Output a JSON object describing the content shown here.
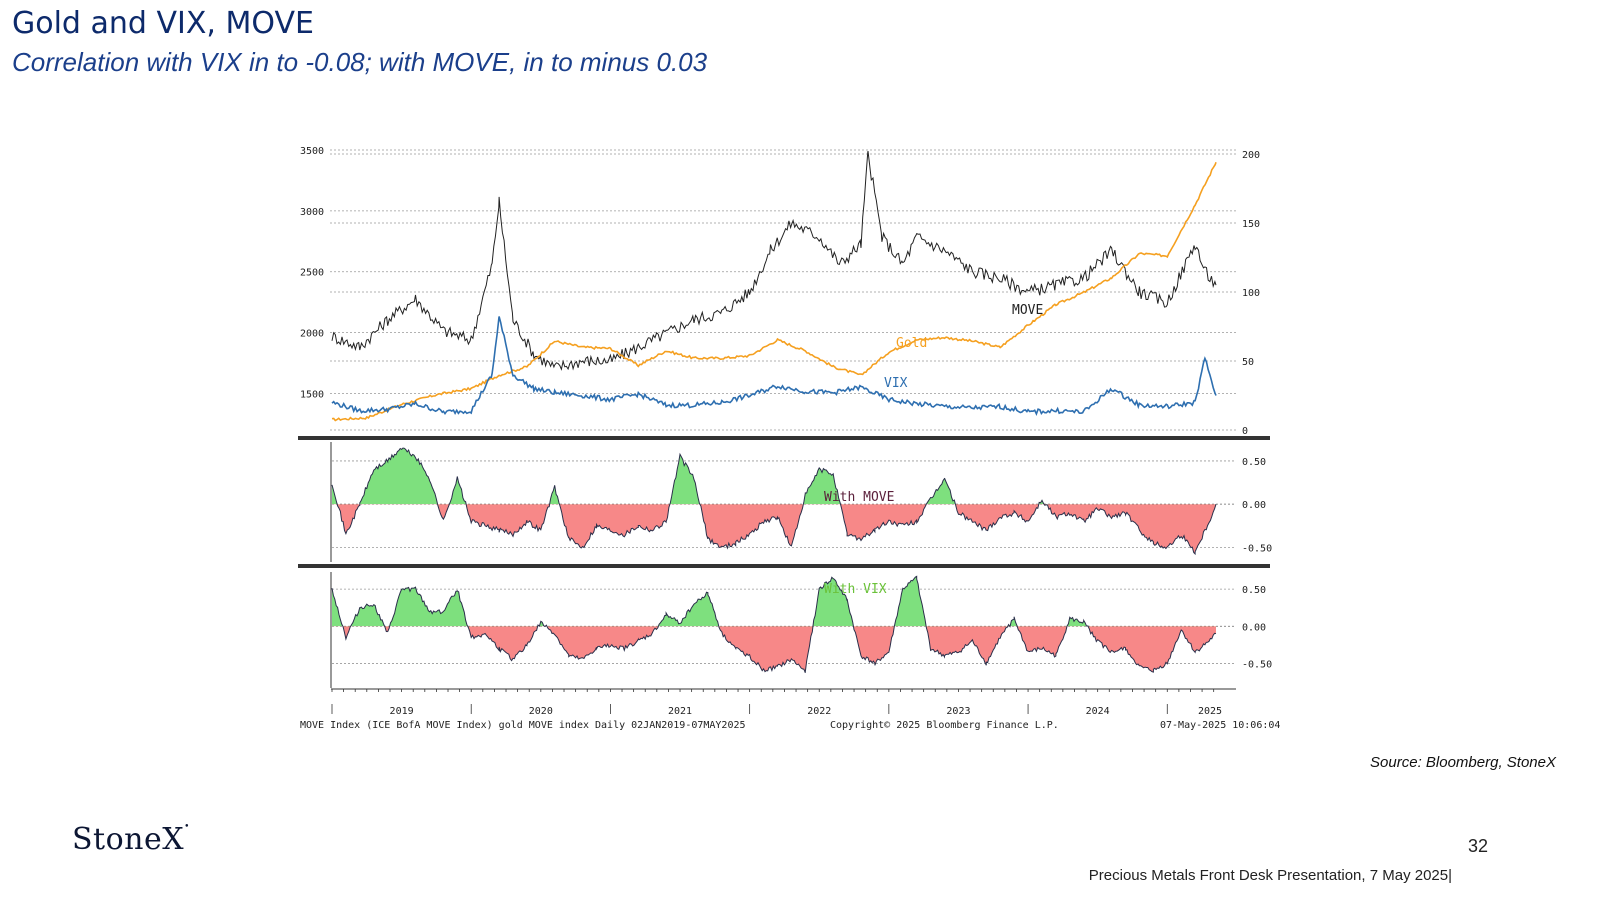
{
  "header": {
    "title": "Gold and VIX, MOVE",
    "subtitle": "Correlation with VIX in to -0.08; with MOVE, in to minus 0.03"
  },
  "footer": {
    "source": "Source: Bloomberg, StoneX",
    "logo": "StoneX",
    "page_number": "32",
    "presentation": "Precious Metals Front Desk Presentation, 7 May 2025|"
  },
  "chart_info": {
    "bottom_left": "MOVE Index (ICE BofA MOVE Index) gold MOVE index  Daily 02JAN2019-07MAY2025",
    "copyright": "Copyright© 2025 Bloomberg Finance L.P.",
    "timestamp": "07-May-2025 10:06:04"
  },
  "chart_data": [
    {
      "type": "line",
      "panel": "price",
      "x_tick_labels": [
        "2019",
        "2020",
        "2021",
        "2022",
        "2023",
        "2024",
        "2025"
      ],
      "y_left_ticks": [
        "3500",
        "3000",
        "2500",
        "2000",
        "1500"
      ],
      "y_right_ticks": [
        "200",
        "150",
        "100",
        "50",
        "0"
      ],
      "ylim_left": [
        1200,
        3500
      ],
      "ylim_right": [
        0,
        200
      ],
      "grid": true,
      "series": [
        {
          "name": "Gold",
          "axis": "left",
          "color": "#f5a020",
          "x": [
            2019.0,
            2019.25,
            2019.5,
            2019.75,
            2020.0,
            2020.2,
            2020.4,
            2020.6,
            2020.8,
            2021.0,
            2021.2,
            2021.4,
            2021.6,
            2021.8,
            2022.0,
            2022.2,
            2022.4,
            2022.6,
            2022.8,
            2023.0,
            2023.2,
            2023.4,
            2023.6,
            2023.8,
            2024.0,
            2024.2,
            2024.4,
            2024.6,
            2024.8,
            2025.0,
            2025.2,
            2025.35
          ],
          "values": [
            1285,
            1300,
            1410,
            1490,
            1540,
            1650,
            1720,
            1930,
            1880,
            1870,
            1730,
            1850,
            1790,
            1790,
            1810,
            1940,
            1850,
            1720,
            1650,
            1840,
            1940,
            1960,
            1930,
            1880,
            2060,
            2230,
            2330,
            2450,
            2650,
            2630,
            3050,
            3400
          ]
        },
        {
          "name": "MOVE",
          "axis": "right",
          "color": "#222222",
          "x": [
            2019.0,
            2019.2,
            2019.4,
            2019.6,
            2019.8,
            2020.0,
            2020.15,
            2020.2,
            2020.3,
            2020.45,
            2020.6,
            2020.8,
            2021.0,
            2021.2,
            2021.4,
            2021.6,
            2021.8,
            2022.0,
            2022.15,
            2022.3,
            2022.5,
            2022.65,
            2022.8,
            2022.85,
            2022.95,
            2023.1,
            2023.2,
            2023.4,
            2023.6,
            2023.8,
            2024.0,
            2024.2,
            2024.4,
            2024.6,
            2024.8,
            2025.0,
            2025.2,
            2025.27,
            2025.35
          ],
          "values": [
            68,
            60,
            80,
            95,
            72,
            65,
            120,
            165,
            80,
            55,
            45,
            50,
            50,
            60,
            70,
            80,
            85,
            100,
            130,
            150,
            140,
            120,
            135,
            200,
            140,
            120,
            140,
            130,
            115,
            110,
            100,
            105,
            110,
            130,
            100,
            92,
            135,
            115,
            105
          ]
        },
        {
          "name": "VIX",
          "axis": "right",
          "color": "#2e6fb0",
          "x": [
            2019.0,
            2019.2,
            2019.4,
            2019.6,
            2019.8,
            2020.0,
            2020.15,
            2020.2,
            2020.3,
            2020.45,
            2020.6,
            2020.8,
            2021.0,
            2021.2,
            2021.4,
            2021.6,
            2021.8,
            2022.0,
            2022.2,
            2022.4,
            2022.6,
            2022.8,
            2023.0,
            2023.2,
            2023.4,
            2023.6,
            2023.8,
            2024.0,
            2024.2,
            2024.4,
            2024.6,
            2024.8,
            2025.0,
            2025.2,
            2025.27,
            2025.35
          ],
          "values": [
            20,
            14,
            15,
            19,
            13,
            14,
            40,
            82,
            40,
            30,
            27,
            25,
            22,
            26,
            18,
            18,
            20,
            25,
            32,
            28,
            27,
            31,
            22,
            19,
            17,
            16,
            17,
            13,
            14,
            13,
            30,
            18,
            17,
            20,
            52,
            25
          ]
        }
      ]
    },
    {
      "type": "area",
      "panel": "correlation",
      "series_name": "With MOVE",
      "color_positive": "#7ee07e",
      "color_negative": "#f78888",
      "y_right_ticks": [
        "0.50",
        "0.00",
        "-0.50"
      ],
      "ylim": [
        -0.6,
        0.65
      ],
      "x": [
        2019.0,
        2019.1,
        2019.2,
        2019.3,
        2019.4,
        2019.5,
        2019.6,
        2019.7,
        2019.8,
        2019.9,
        2020.0,
        2020.1,
        2020.2,
        2020.3,
        2020.4,
        2020.5,
        2020.6,
        2020.7,
        2020.8,
        2020.9,
        2021.0,
        2021.1,
        2021.2,
        2021.3,
        2021.4,
        2021.5,
        2021.6,
        2021.7,
        2021.8,
        2021.9,
        2022.0,
        2022.1,
        2022.2,
        2022.3,
        2022.4,
        2022.5,
        2022.6,
        2022.7,
        2022.8,
        2022.9,
        2023.0,
        2023.1,
        2023.2,
        2023.3,
        2023.4,
        2023.5,
        2023.6,
        2023.7,
        2023.8,
        2023.9,
        2024.0,
        2024.1,
        2024.2,
        2024.3,
        2024.4,
        2024.5,
        2024.6,
        2024.7,
        2024.8,
        2024.9,
        2025.0,
        2025.1,
        2025.2,
        2025.3,
        2025.35
      ],
      "values": [
        0.25,
        -0.35,
        0.0,
        0.4,
        0.5,
        0.65,
        0.55,
        0.3,
        -0.2,
        0.3,
        -0.2,
        -0.25,
        -0.3,
        -0.35,
        -0.2,
        -0.3,
        0.2,
        -0.4,
        -0.5,
        -0.25,
        -0.3,
        -0.35,
        -0.25,
        -0.3,
        -0.2,
        0.55,
        0.3,
        -0.4,
        -0.5,
        -0.45,
        -0.35,
        -0.2,
        -0.15,
        -0.5,
        0.1,
        0.4,
        0.35,
        -0.35,
        -0.4,
        -0.3,
        -0.2,
        -0.25,
        -0.2,
        0.05,
        0.3,
        -0.1,
        -0.2,
        -0.3,
        -0.15,
        -0.1,
        -0.2,
        0.05,
        -0.15,
        -0.1,
        -0.2,
        -0.05,
        -0.15,
        -0.1,
        -0.3,
        -0.45,
        -0.5,
        -0.35,
        -0.55,
        -0.2,
        0.0
      ]
    },
    {
      "type": "area",
      "panel": "correlation",
      "series_name": "With VIX",
      "color_positive": "#7ee07e",
      "color_negative": "#f78888",
      "y_right_ticks": [
        "0.50",
        "0.00",
        "-0.50"
      ],
      "ylim": [
        -0.75,
        0.65
      ],
      "x": [
        2019.0,
        2019.1,
        2019.2,
        2019.3,
        2019.4,
        2019.5,
        2019.6,
        2019.7,
        2019.8,
        2019.9,
        2020.0,
        2020.1,
        2020.2,
        2020.3,
        2020.4,
        2020.5,
        2020.6,
        2020.7,
        2020.8,
        2020.9,
        2021.0,
        2021.1,
        2021.2,
        2021.3,
        2021.4,
        2021.5,
        2021.6,
        2021.7,
        2021.8,
        2021.9,
        2022.0,
        2022.1,
        2022.2,
        2022.3,
        2022.4,
        2022.5,
        2022.6,
        2022.7,
        2022.8,
        2022.9,
        2023.0,
        2023.1,
        2023.2,
        2023.3,
        2023.4,
        2023.5,
        2023.6,
        2023.7,
        2023.8,
        2023.9,
        2024.0,
        2024.1,
        2024.2,
        2024.3,
        2024.4,
        2024.5,
        2024.6,
        2024.7,
        2024.8,
        2024.9,
        2025.0,
        2025.1,
        2025.2,
        2025.3,
        2025.35
      ],
      "values": [
        0.5,
        -0.15,
        0.25,
        0.3,
        -0.1,
        0.5,
        0.5,
        0.2,
        0.2,
        0.5,
        -0.15,
        -0.1,
        -0.3,
        -0.45,
        -0.25,
        0.05,
        -0.1,
        -0.4,
        -0.45,
        -0.3,
        -0.25,
        -0.3,
        -0.2,
        -0.1,
        0.15,
        0.05,
        0.3,
        0.45,
        -0.1,
        -0.3,
        -0.4,
        -0.6,
        -0.55,
        -0.45,
        -0.6,
        0.5,
        0.65,
        0.35,
        -0.4,
        -0.5,
        -0.35,
        0.5,
        0.65,
        -0.3,
        -0.4,
        -0.35,
        -0.2,
        -0.5,
        -0.15,
        0.1,
        -0.35,
        -0.3,
        -0.4,
        0.1,
        0.05,
        -0.2,
        -0.35,
        -0.3,
        -0.55,
        -0.6,
        -0.5,
        -0.05,
        -0.35,
        -0.2,
        -0.1
      ]
    }
  ]
}
